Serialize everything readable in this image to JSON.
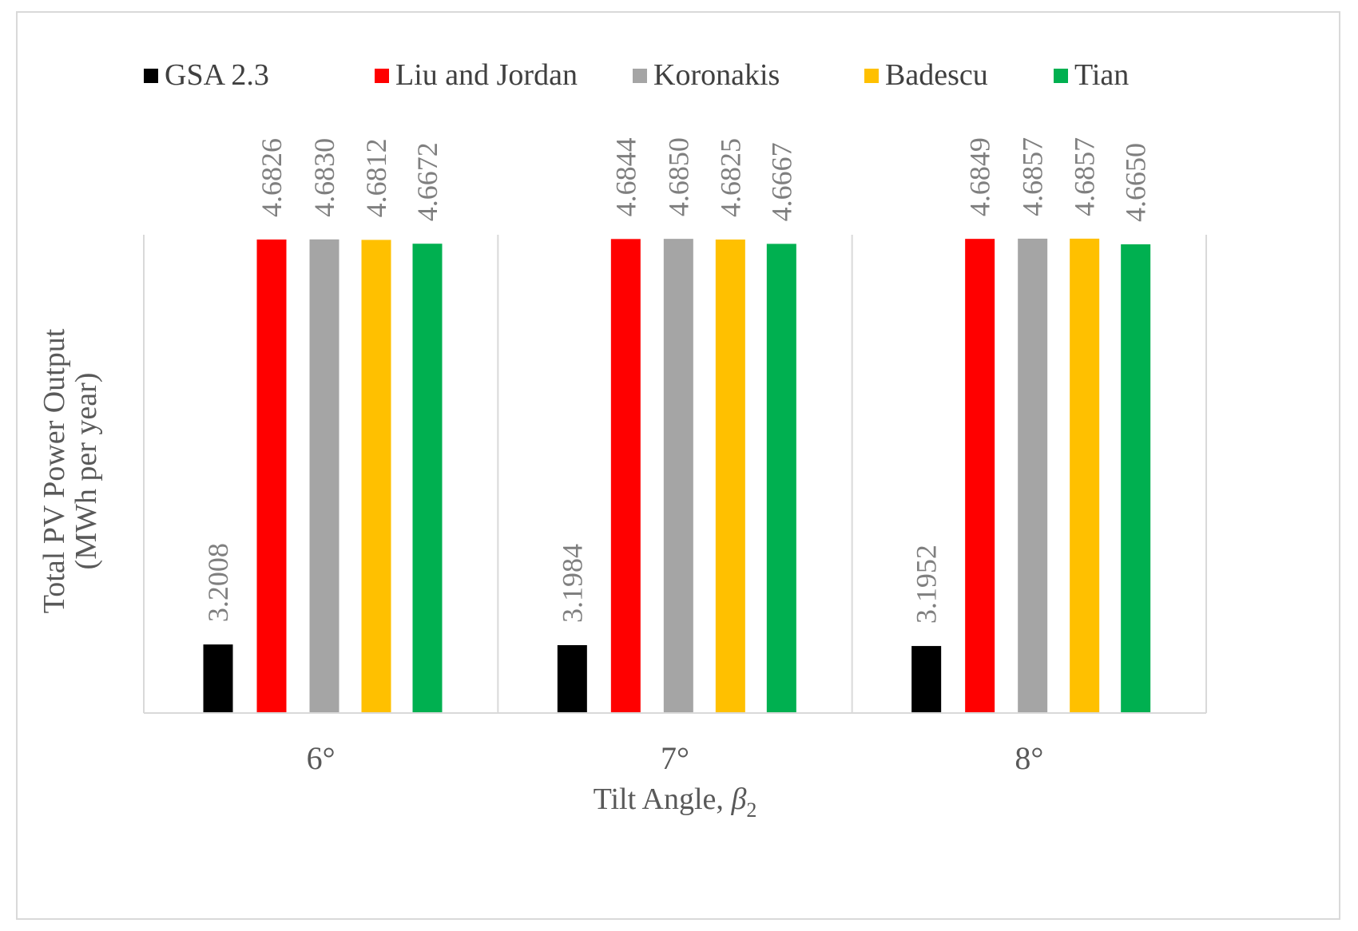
{
  "chart_data": {
    "type": "bar",
    "title": "",
    "categories": [
      "6°",
      "7°",
      "8°"
    ],
    "series": [
      {
        "name": "GSA 2.3",
        "color": "#000000",
        "values": [
          3.2008,
          3.1984,
          3.1952
        ]
      },
      {
        "name": "Liu and Jordan",
        "color": "#ff0000",
        "values": [
          4.6826,
          4.6844,
          4.6849
        ]
      },
      {
        "name": "Koronakis",
        "color": "#a5a5a5",
        "values": [
          4.683,
          4.685,
          4.6857
        ]
      },
      {
        "name": "Badescu",
        "color": "#ffc000",
        "values": [
          4.6812,
          4.6825,
          4.6857
        ]
      },
      {
        "name": "Tian",
        "color": "#00b050",
        "values": [
          4.6672,
          4.6667,
          4.665
        ]
      }
    ],
    "data_labels": [
      [
        "3.2008",
        "4.6826",
        "4.6830",
        "4.6812",
        "4.6672"
      ],
      [
        "3.1984",
        "4.6844",
        "4.6850",
        "4.6825",
        "4.6667"
      ],
      [
        "3.1952",
        "4.6849",
        "4.6857",
        "4.6857",
        "4.6650"
      ]
    ],
    "xlabel": {
      "text": "Tilt Angle, ",
      "symbol": "β",
      "subscript": "2"
    },
    "ylabel": [
      "Total PV Power Output",
      "(MWh per year)"
    ],
    "ylim": [
      2.95,
      4.7
    ],
    "legend_position": "top",
    "grid": "vertical category separators"
  }
}
